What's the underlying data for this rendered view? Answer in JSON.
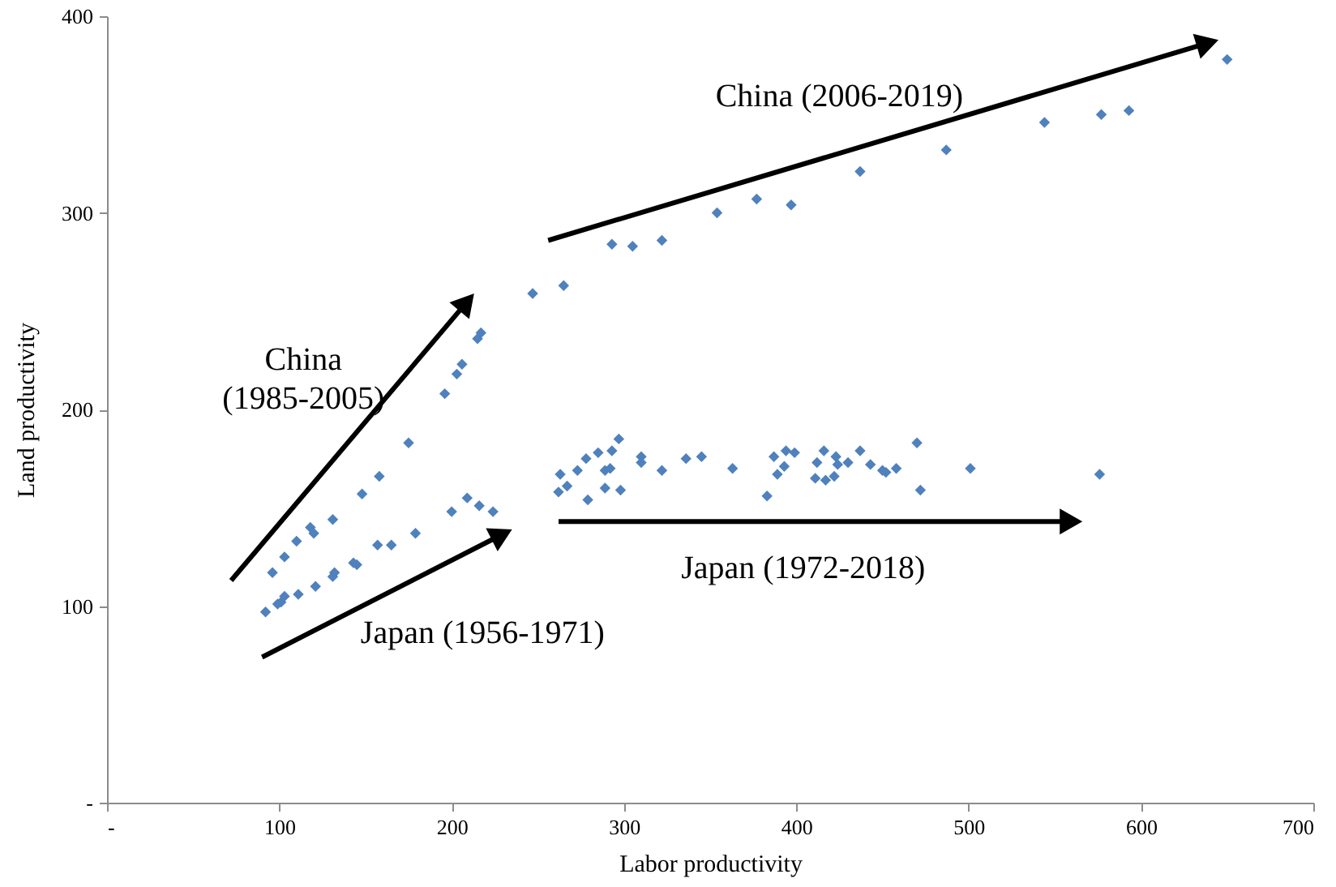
{
  "chart_data": {
    "type": "scatter",
    "xlabel": "Labor productivity",
    "ylabel": "Land productivity",
    "xlim": [
      0,
      700
    ],
    "ylim": [
      0,
      400
    ],
    "xticks": [
      {
        "value": 0,
        "label": "-"
      },
      100,
      200,
      300,
      400,
      500,
      600,
      700
    ],
    "yticks": [
      {
        "value": 0,
        "label": "-"
      },
      100,
      200,
      300,
      400
    ],
    "grid": false,
    "marker": "diamond",
    "series": [
      {
        "color": "#4f81bd",
        "x": [
          96,
          103,
          110,
          118,
          120,
          131,
          148,
          158,
          175,
          196,
          203,
          206,
          215,
          217,
          247,
          265,
          293,
          305,
          322,
          354,
          377,
          397,
          437,
          487,
          544,
          577,
          593,
          650,
          92,
          99,
          101,
          103,
          111,
          121,
          131,
          132,
          143,
          145,
          157,
          165,
          179,
          200,
          209,
          216,
          224,
          263,
          262,
          267,
          273,
          279,
          278,
          285,
          289,
          292,
          289,
          293,
          297,
          298,
          310,
          310,
          322,
          336,
          345,
          363,
          383,
          387,
          389,
          393,
          394,
          399,
          412,
          411,
          416,
          417,
          422,
          423,
          424,
          430,
          437,
          443,
          450,
          452,
          458,
          470,
          472,
          501,
          576
        ],
        "values": [
          117,
          125,
          133,
          140,
          137,
          144,
          157,
          166,
          183,
          208,
          218,
          223,
          236,
          239,
          259,
          263,
          284,
          283,
          286,
          300,
          307,
          304,
          321,
          332,
          346,
          350,
          352,
          378,
          97,
          101,
          102,
          105,
          106,
          110,
          115,
          117,
          122,
          121,
          131,
          131,
          137,
          148,
          155,
          151,
          148,
          167,
          158,
          161,
          169,
          154,
          175,
          178,
          169,
          170,
          160,
          179,
          185,
          159,
          176,
          173,
          169,
          175,
          176,
          170,
          156,
          176,
          167,
          171,
          179,
          178,
          173,
          165,
          179,
          164,
          166,
          176,
          172,
          173,
          179,
          172,
          169,
          168,
          170,
          183,
          159,
          170,
          167
        ]
      }
    ],
    "annotations": [
      "China (2006-2019)",
      "China\n(1985-2005)",
      "Japan (1956-1971)",
      "Japan (1972-2018)"
    ]
  }
}
